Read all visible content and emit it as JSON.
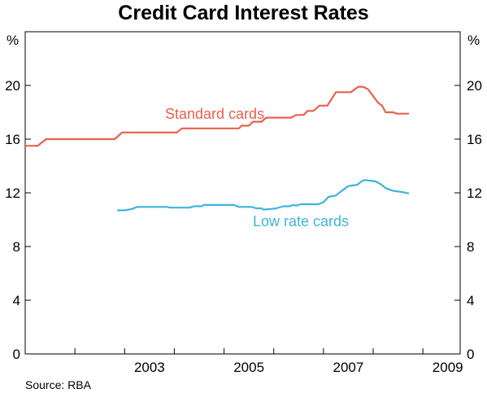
{
  "chart_data": {
    "type": "line",
    "title": "Credit Card Interest Rates",
    "source": "Source: RBA",
    "y_unit_left": "%",
    "y_unit_right": "%",
    "ylim": [
      0,
      24
    ],
    "yticks": [
      0,
      4,
      8,
      12,
      16,
      20
    ],
    "xlim": [
      2001.0,
      2009.75
    ],
    "xtick_labels": [
      "2003",
      "2005",
      "2007",
      "2009"
    ],
    "xtick_label_positions": [
      2003.5,
      2005.5,
      2007.5,
      2009.5
    ],
    "year_boundaries": [
      2002,
      2003,
      2004,
      2005,
      2006,
      2007,
      2008,
      2009
    ],
    "grid": false,
    "series": [
      {
        "name": "Standard cards",
        "color": "#e8604c",
        "points": [
          [
            2001.0,
            15.5
          ],
          [
            2001.25,
            15.5
          ],
          [
            2001.42,
            16.0
          ],
          [
            2002.0,
            16.0
          ],
          [
            2002.8,
            16.0
          ],
          [
            2002.95,
            16.5
          ],
          [
            2003.5,
            16.5
          ],
          [
            2004.05,
            16.5
          ],
          [
            2004.15,
            16.8
          ],
          [
            2005.0,
            16.8
          ],
          [
            2005.3,
            16.8
          ],
          [
            2005.35,
            17.0
          ],
          [
            2005.5,
            17.0
          ],
          [
            2005.58,
            17.3
          ],
          [
            2005.75,
            17.3
          ],
          [
            2005.85,
            17.6
          ],
          [
            2006.35,
            17.6
          ],
          [
            2006.45,
            17.8
          ],
          [
            2006.6,
            17.8
          ],
          [
            2006.68,
            18.1
          ],
          [
            2006.8,
            18.1
          ],
          [
            2006.92,
            18.5
          ],
          [
            2007.08,
            18.5
          ],
          [
            2007.25,
            19.5
          ],
          [
            2007.55,
            19.5
          ],
          [
            2007.7,
            19.9
          ],
          [
            2007.8,
            19.9
          ],
          [
            2007.9,
            19.7
          ],
          [
            2008.0,
            19.2
          ],
          [
            2008.1,
            18.7
          ],
          [
            2008.18,
            18.5
          ],
          [
            2008.25,
            18.0
          ],
          [
            2008.4,
            18.0
          ],
          [
            2008.48,
            17.9
          ],
          [
            2008.72,
            17.9
          ]
        ]
      },
      {
        "name": "Low rate cards",
        "color": "#3eb4dc",
        "points": [
          [
            2002.85,
            10.7
          ],
          [
            2003.0,
            10.7
          ],
          [
            2003.15,
            10.8
          ],
          [
            2003.25,
            10.95
          ],
          [
            2003.5,
            10.95
          ],
          [
            2003.85,
            10.95
          ],
          [
            2003.92,
            10.9
          ],
          [
            2004.3,
            10.9
          ],
          [
            2004.4,
            11.0
          ],
          [
            2004.55,
            11.0
          ],
          [
            2004.6,
            11.1
          ],
          [
            2005.2,
            11.1
          ],
          [
            2005.3,
            10.95
          ],
          [
            2005.55,
            10.95
          ],
          [
            2005.65,
            10.85
          ],
          [
            2005.75,
            10.85
          ],
          [
            2005.8,
            10.75
          ],
          [
            2005.95,
            10.8
          ],
          [
            2006.05,
            10.85
          ],
          [
            2006.2,
            11.0
          ],
          [
            2006.3,
            11.0
          ],
          [
            2006.4,
            11.1
          ],
          [
            2006.45,
            11.05
          ],
          [
            2006.55,
            11.15
          ],
          [
            2006.9,
            11.15
          ],
          [
            2007.0,
            11.3
          ],
          [
            2007.1,
            11.7
          ],
          [
            2007.25,
            11.8
          ],
          [
            2007.35,
            12.1
          ],
          [
            2007.5,
            12.5
          ],
          [
            2007.68,
            12.6
          ],
          [
            2007.78,
            12.9
          ],
          [
            2007.85,
            12.95
          ],
          [
            2008.05,
            12.85
          ],
          [
            2008.15,
            12.65
          ],
          [
            2008.25,
            12.35
          ],
          [
            2008.4,
            12.15
          ],
          [
            2008.6,
            12.05
          ],
          [
            2008.72,
            11.95
          ]
        ]
      }
    ]
  }
}
